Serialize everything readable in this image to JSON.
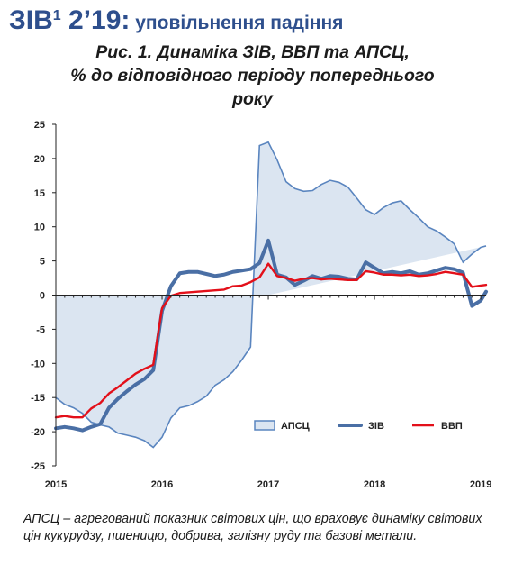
{
  "header": {
    "title_main": "ЗІВ",
    "title_sup": "1",
    "title_period": " 2’19:",
    "title_sub": " уповільнення падіння",
    "figure_title_line1": "Рис. 1. Динаміка ЗІВ, ВВП та АПСЦ,",
    "figure_title_line2": "% до відповідного періоду попереднього",
    "figure_title_line3": "року"
  },
  "note": "АПСЦ – агрегований показник світових цін, що враховує динаміку світових цін кукурудзу, пшеницю, добрива, залізну руду та базові метали.",
  "chart_data": {
    "type": "line",
    "title": "Рис. 1. Динаміка ЗІВ, ВВП та АПСЦ, % до відповідного періоду попереднього року",
    "xlabel": "",
    "ylabel": "",
    "xlim": [
      2015,
      2019.1
    ],
    "ylim": [
      -25,
      25
    ],
    "y_ticks": [
      -25,
      -20,
      -15,
      -10,
      -5,
      0,
      5,
      10,
      15,
      20,
      25
    ],
    "y_tick_labels": [
      "-25",
      "-20",
      "-15",
      "-10",
      "-5",
      "0",
      "5",
      "10",
      "15",
      "20",
      "25"
    ],
    "x_ticks": [
      2015,
      2016,
      2017,
      2018,
      2019
    ],
    "x_tick_labels": [
      "2015",
      "2016",
      "2017",
      "2018",
      "2019"
    ],
    "grid": false,
    "legend_position": "lower-right",
    "colors": {
      "apsc_fill": "#dbe5f1",
      "apsc_line": "#5a85bf",
      "ziv": "#4a6fa5",
      "gdp": "#e3101a"
    },
    "series": [
      {
        "name": "АПСЦ",
        "style": "area",
        "x": [
          2015.0,
          2015.083,
          2015.167,
          2015.25,
          2015.333,
          2015.417,
          2015.5,
          2015.583,
          2015.667,
          2015.75,
          2015.833,
          2015.917,
          2016.0,
          2016.083,
          2016.167,
          2016.25,
          2016.333,
          2016.417,
          2016.5,
          2016.583,
          2016.667,
          2016.75,
          2016.833,
          2016.917,
          2017.0,
          2017.083,
          2017.167,
          2017.25,
          2017.333,
          2017.417,
          2017.5,
          2017.583,
          2017.667,
          2017.75,
          2017.833,
          2017.917,
          2018.0,
          2018.083,
          2018.167,
          2018.25,
          2018.333,
          2018.417,
          2018.5,
          2018.583,
          2018.667,
          2018.75,
          2018.833,
          2018.917,
          2019.0,
          2019.05
        ],
        "values": [
          -15.0,
          -16.0,
          -16.5,
          -17.3,
          -18.6,
          -19.0,
          -19.3,
          -20.2,
          -20.5,
          -20.8,
          -21.3,
          -22.3,
          -20.8,
          -18.0,
          -16.5,
          -16.2,
          -15.6,
          -14.8,
          -13.2,
          -12.4,
          -11.2,
          -9.5,
          -7.6,
          21.9,
          22.4,
          19.8,
          16.6,
          15.6,
          15.2,
          15.3,
          16.2,
          16.8,
          16.5,
          15.8,
          14.2,
          12.5,
          11.8,
          12.8,
          13.5,
          13.8,
          12.5,
          11.3,
          10.0,
          9.4,
          8.5,
          7.5,
          4.8,
          6.0,
          7.0,
          7.2
        ],
        "baseline_x": [
          2015.0,
          2015.083,
          2015.167,
          2015.25,
          2015.333,
          2015.417,
          2015.5,
          2015.583,
          2015.667,
          2015.75,
          2015.833,
          2015.917,
          2016.0,
          2016.083,
          2016.167,
          2016.25,
          2016.333,
          2016.417,
          2016.5,
          2016.583,
          2016.667,
          2016.75,
          2016.833,
          2016.917,
          2017.0
        ],
        "baseline_values": [
          0,
          0,
          0,
          0,
          0,
          0,
          0,
          0,
          0,
          0,
          0,
          0,
          0,
          0,
          0,
          0,
          0,
          0,
          0,
          0,
          0,
          0,
          0,
          0,
          0
        ]
      },
      {
        "name": "ЗІВ",
        "style": "line",
        "x": [
          2015.0,
          2015.083,
          2015.167,
          2015.25,
          2015.333,
          2015.417,
          2015.5,
          2015.583,
          2015.667,
          2015.75,
          2015.833,
          2015.917,
          2016.0,
          2016.083,
          2016.167,
          2016.25,
          2016.333,
          2016.417,
          2016.5,
          2016.583,
          2016.667,
          2016.75,
          2016.833,
          2016.917,
          2017.0,
          2017.083,
          2017.167,
          2017.25,
          2017.333,
          2017.417,
          2017.5,
          2017.583,
          2017.667,
          2017.75,
          2017.833,
          2017.917,
          2018.0,
          2018.083,
          2018.167,
          2018.25,
          2018.333,
          2018.417,
          2018.5,
          2018.583,
          2018.667,
          2018.75,
          2018.833,
          2018.917,
          2019.0,
          2019.05
        ],
        "values": [
          -19.5,
          -19.3,
          -19.5,
          -19.8,
          -19.3,
          -18.9,
          -16.5,
          -15.2,
          -14.1,
          -13.1,
          -12.3,
          -11.0,
          -2.3,
          1.3,
          3.2,
          3.4,
          3.4,
          3.1,
          2.8,
          3.0,
          3.4,
          3.6,
          3.8,
          4.7,
          8.0,
          3.0,
          2.6,
          1.5,
          2.1,
          2.8,
          2.4,
          2.8,
          2.7,
          2.4,
          2.3,
          4.8,
          4.0,
          3.2,
          3.4,
          3.2,
          3.5,
          3.0,
          3.2,
          3.6,
          4.0,
          3.8,
          3.3,
          -1.6,
          -0.8,
          0.5
        ]
      },
      {
        "name": "ВВП",
        "style": "line",
        "x": [
          2015.0,
          2015.083,
          2015.167,
          2015.25,
          2015.333,
          2015.417,
          2015.5,
          2015.583,
          2015.667,
          2015.75,
          2015.833,
          2015.917,
          2016.0,
          2016.083,
          2016.167,
          2016.25,
          2016.333,
          2016.417,
          2016.5,
          2016.583,
          2016.667,
          2016.75,
          2016.833,
          2016.917,
          2017.0,
          2017.083,
          2017.167,
          2017.25,
          2017.333,
          2017.417,
          2017.5,
          2017.583,
          2017.667,
          2017.75,
          2017.833,
          2017.917,
          2018.0,
          2018.083,
          2018.167,
          2018.25,
          2018.333,
          2018.417,
          2018.5,
          2018.583,
          2018.667,
          2018.75,
          2018.833,
          2018.917,
          2019.0,
          2019.05
        ],
        "values": [
          -17.9,
          -17.7,
          -17.9,
          -17.9,
          -16.6,
          -15.8,
          -14.4,
          -13.5,
          -12.5,
          -11.5,
          -10.8,
          -10.2,
          -1.9,
          -0.1,
          0.3,
          0.4,
          0.5,
          0.6,
          0.7,
          0.8,
          1.3,
          1.4,
          1.9,
          2.6,
          4.6,
          2.8,
          2.5,
          2.1,
          2.4,
          2.5,
          2.3,
          2.4,
          2.3,
          2.2,
          2.2,
          3.5,
          3.3,
          3.0,
          3.0,
          2.9,
          3.0,
          2.8,
          2.9,
          3.1,
          3.4,
          3.2,
          3.0,
          1.2,
          1.4,
          1.5
        ]
      }
    ]
  }
}
